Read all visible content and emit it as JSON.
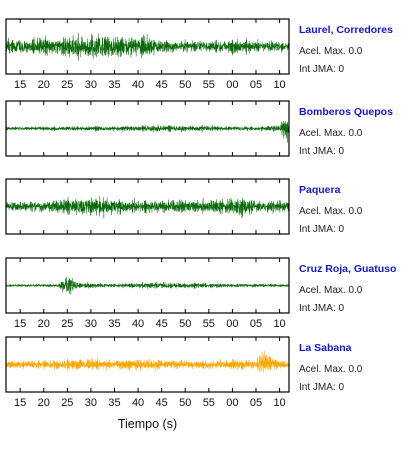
{
  "chart_data": {
    "type": "line",
    "xlabel": "Tiempo (s)",
    "x_tick_labels": [
      "15",
      "20",
      "25",
      "30",
      "35",
      "40",
      "45",
      "50",
      "55",
      "00",
      "05",
      "10"
    ],
    "x_tick_labels_shown_under_panels": [
      1,
      4,
      5
    ],
    "colors": {
      "default_trace": "#0b6b0b",
      "alert_trace": "#ffa500",
      "frame": "#000000",
      "station_label": "#1414d8"
    },
    "series": [
      {
        "name": "Laurel, Corredores",
        "acel_max_label": "Acel. Max. 0.0",
        "int_jma_label": "Int JMA: 0",
        "color": "#0b6b0b",
        "envelope": [
          [
            12,
            0.55
          ],
          [
            20,
            0.6
          ],
          [
            25,
            0.75
          ],
          [
            27,
            0.8
          ],
          [
            29,
            0.9
          ],
          [
            30,
            1.0
          ],
          [
            31,
            0.95
          ],
          [
            33,
            0.85
          ],
          [
            35,
            0.8
          ],
          [
            40,
            0.7
          ],
          [
            41,
            0.85
          ],
          [
            43,
            0.6
          ],
          [
            45,
            0.45
          ],
          [
            50,
            0.4
          ],
          [
            55,
            0.45
          ],
          [
            58,
            0.45
          ],
          [
            62,
            0.5
          ],
          [
            65,
            0.4
          ],
          [
            70,
            0.4
          ],
          [
            72,
            0.35
          ]
        ],
        "spikes": []
      },
      {
        "name": "Bomberos Quepos",
        "acel_max_label": "Acel. Max. 0.0",
        "int_jma_label": "Int JMA: 0",
        "color": "#0b6b0b",
        "envelope": [
          [
            12,
            0.12
          ],
          [
            30,
            0.15
          ],
          [
            40,
            0.2
          ],
          [
            45,
            0.25
          ],
          [
            55,
            0.2
          ],
          [
            65,
            0.15
          ],
          [
            70,
            0.25
          ],
          [
            71,
            1.0
          ],
          [
            72,
            1.0
          ]
        ],
        "spikes": []
      },
      {
        "name": "Paquera",
        "acel_max_label": "Acel. Max. 0.0",
        "int_jma_label": "Int JMA: 0",
        "color": "#0b6b0b",
        "envelope": [
          [
            12,
            0.35
          ],
          [
            20,
            0.4
          ],
          [
            27,
            0.6
          ],
          [
            30,
            0.65
          ],
          [
            35,
            0.55
          ],
          [
            40,
            0.45
          ],
          [
            45,
            0.5
          ],
          [
            50,
            0.45
          ],
          [
            55,
            0.45
          ],
          [
            60,
            0.55
          ],
          [
            62,
            0.6
          ],
          [
            65,
            0.45
          ],
          [
            72,
            0.4
          ]
        ],
        "spikes": [
          [
            62.1,
            1.0
          ]
        ]
      },
      {
        "name": "Cruz Roja, Guatuso",
        "acel_max_label": "Acel. Max. 0.0",
        "int_jma_label": "Int JMA: 0",
        "color": "#0b6b0b",
        "envelope": [
          [
            12,
            0.08
          ],
          [
            23,
            0.1
          ],
          [
            24,
            0.5
          ],
          [
            25,
            0.95
          ],
          [
            26,
            0.7
          ],
          [
            27,
            0.2
          ],
          [
            35,
            0.12
          ],
          [
            45,
            0.25
          ],
          [
            50,
            0.2
          ],
          [
            60,
            0.12
          ],
          [
            72,
            0.1
          ]
        ],
        "spikes": []
      },
      {
        "name": "La Sabana",
        "acel_max_label": "Acel. Max. 0.0",
        "int_jma_label": "Int JMA: 0",
        "color": "#ffa500",
        "envelope": [
          [
            12,
            0.25
          ],
          [
            20,
            0.3
          ],
          [
            25,
            0.35
          ],
          [
            30,
            0.4
          ],
          [
            35,
            0.35
          ],
          [
            40,
            0.4
          ],
          [
            45,
            0.35
          ],
          [
            55,
            0.3
          ],
          [
            65,
            0.35
          ],
          [
            66,
            0.8
          ],
          [
            67,
            1.0
          ],
          [
            68,
            0.7
          ],
          [
            70,
            0.3
          ],
          [
            72,
            0.3
          ]
        ],
        "spikes": [
          [
            67,
            1.0
          ]
        ]
      }
    ]
  }
}
